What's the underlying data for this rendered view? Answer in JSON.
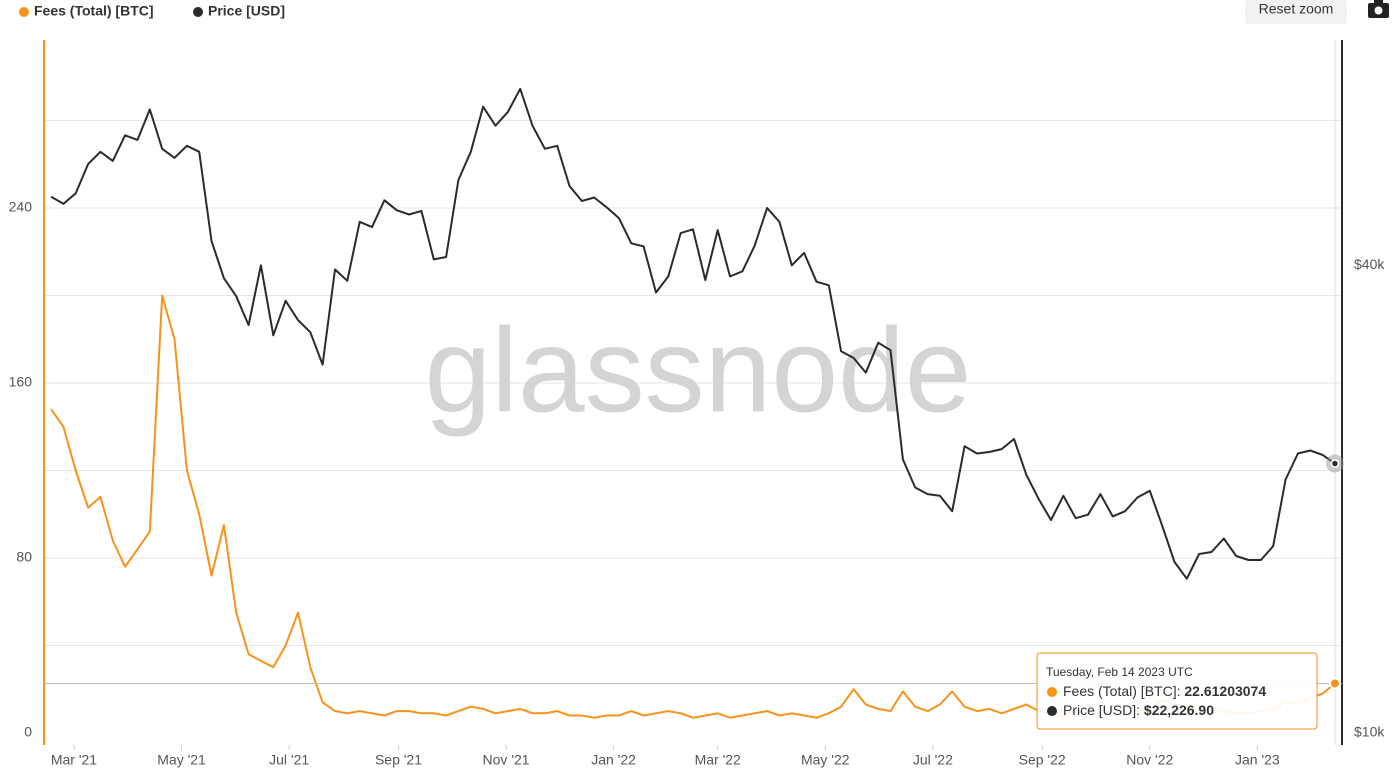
{
  "chart_data": {
    "type": "line",
    "watermark": "glassnode",
    "reset_button": "Reset zoom",
    "legend_position": "top-left",
    "x": [
      "2021-02-16",
      "2021-02-23",
      "2021-03-02",
      "2021-03-09",
      "2021-03-16",
      "2021-03-23",
      "2021-03-30",
      "2021-04-06",
      "2021-04-13",
      "2021-04-20",
      "2021-04-27",
      "2021-05-04",
      "2021-05-11",
      "2021-05-18",
      "2021-05-25",
      "2021-06-01",
      "2021-06-08",
      "2021-06-15",
      "2021-06-22",
      "2021-06-29",
      "2021-07-06",
      "2021-07-13",
      "2021-07-20",
      "2021-07-27",
      "2021-08-03",
      "2021-08-10",
      "2021-08-17",
      "2021-08-24",
      "2021-08-31",
      "2021-09-07",
      "2021-09-14",
      "2021-09-21",
      "2021-09-28",
      "2021-10-05",
      "2021-10-12",
      "2021-10-19",
      "2021-10-26",
      "2021-11-02",
      "2021-11-09",
      "2021-11-16",
      "2021-11-23",
      "2021-11-30",
      "2021-12-07",
      "2021-12-14",
      "2021-12-21",
      "2021-12-28",
      "2022-01-04",
      "2022-01-11",
      "2022-01-18",
      "2022-01-25",
      "2022-02-01",
      "2022-02-08",
      "2022-02-15",
      "2022-02-22",
      "2022-03-01",
      "2022-03-08",
      "2022-03-15",
      "2022-03-22",
      "2022-03-29",
      "2022-04-05",
      "2022-04-12",
      "2022-04-19",
      "2022-04-26",
      "2022-05-03",
      "2022-05-10",
      "2022-05-17",
      "2022-05-24",
      "2022-05-31",
      "2022-06-07",
      "2022-06-14",
      "2022-06-21",
      "2022-06-28",
      "2022-07-05",
      "2022-07-12",
      "2022-07-19",
      "2022-07-26",
      "2022-08-02",
      "2022-08-09",
      "2022-08-16",
      "2022-08-23",
      "2022-08-30",
      "2022-09-06",
      "2022-09-13",
      "2022-09-20",
      "2022-09-27",
      "2022-10-04",
      "2022-10-11",
      "2022-10-18",
      "2022-10-25",
      "2022-11-01",
      "2022-11-08",
      "2022-11-15",
      "2022-11-22",
      "2022-11-29",
      "2022-12-06",
      "2022-12-13",
      "2022-12-20",
      "2022-12-27",
      "2023-01-03",
      "2023-01-10",
      "2023-01-17",
      "2023-01-24",
      "2023-01-31",
      "2023-02-07",
      "2023-02-14"
    ],
    "xlim": [
      "2021-02-12",
      "2023-02-18"
    ],
    "xticks": [
      {
        "value": "2021-03-01",
        "label": "Mar '21"
      },
      {
        "value": "2021-05-01",
        "label": "May '21"
      },
      {
        "value": "2021-07-01",
        "label": "Jul '21"
      },
      {
        "value": "2021-09-01",
        "label": "Sep '21"
      },
      {
        "value": "2021-11-01",
        "label": "Nov '21"
      },
      {
        "value": "2022-01-01",
        "label": "Jan '22"
      },
      {
        "value": "2022-03-01",
        "label": "Mar '22"
      },
      {
        "value": "2022-05-01",
        "label": "May '22"
      },
      {
        "value": "2022-07-01",
        "label": "Jul '22"
      },
      {
        "value": "2022-09-01",
        "label": "Sep '22"
      },
      {
        "value": "2022-11-01",
        "label": "Nov '22"
      },
      {
        "value": "2023-01-01",
        "label": "Jan '23"
      }
    ],
    "ylim": [
      -5.5,
      316.8
    ],
    "yticks": [
      0,
      80,
      160,
      240
    ],
    "grid": [
      40,
      80,
      120,
      160,
      200,
      240,
      280
    ],
    "y2lim": [
      9650,
      78000
    ],
    "y2scale": "log",
    "y2ticks": [
      {
        "value": 10000,
        "label": "$10k"
      },
      {
        "value": 40000,
        "label": "$40k"
      }
    ],
    "series": [
      {
        "name": "Fees (Total) [BTC]",
        "color": "#f7931a",
        "values": [
          148,
          140,
          120,
          103,
          108,
          88,
          76,
          84,
          92,
          200,
          180,
          120,
          100,
          72,
          95,
          55,
          36,
          33,
          30,
          40,
          55,
          30,
          14,
          10,
          9,
          10,
          9,
          8,
          10,
          10,
          9,
          9,
          8,
          10,
          12,
          11,
          9,
          10,
          11,
          9,
          9,
          10,
          8,
          8,
          7,
          8,
          8,
          10,
          8,
          9,
          10,
          9,
          7,
          8,
          9,
          7,
          8,
          9,
          10,
          8,
          9,
          8,
          7,
          9,
          12,
          20,
          13,
          11,
          10,
          19,
          12,
          10,
          13,
          19,
          12,
          10,
          11,
          9,
          11,
          13,
          10,
          9,
          8,
          10,
          9,
          8,
          11,
          9,
          10,
          11,
          15,
          13,
          12,
          10,
          11,
          10,
          9,
          9,
          10,
          11,
          14,
          13,
          16,
          18,
          22.61203074
        ]
      },
      {
        "name": "Price [USD]",
        "color": "#2b2b2b",
        "axis": "y2",
        "values": [
          49000,
          48000,
          49500,
          54000,
          56000,
          54500,
          58800,
          58000,
          63500,
          56500,
          55000,
          57000,
          56000,
          43000,
          38500,
          36500,
          33500,
          40000,
          32500,
          36000,
          34000,
          32800,
          29800,
          39500,
          38200,
          45500,
          44800,
          48500,
          47100,
          46500,
          47000,
          40700,
          41000,
          51500,
          56000,
          64000,
          60500,
          63000,
          67500,
          60500,
          56500,
          57000,
          50600,
          48400,
          48900,
          47500,
          46000,
          42700,
          42300,
          36900,
          38700,
          44000,
          44500,
          38300,
          44400,
          38700,
          39300,
          42400,
          47400,
          45500,
          40000,
          41500,
          38100,
          37700,
          31000,
          30400,
          29100,
          31800,
          31100,
          22500,
          20700,
          20300,
          20200,
          19300,
          23400,
          22900,
          23000,
          23200,
          23900,
          21500,
          20000,
          18800,
          20200,
          18900,
          19100,
          20300,
          19000,
          19300,
          20100,
          20500,
          18500,
          16600,
          15800,
          17000,
          17100,
          17800,
          16900,
          16700,
          16700,
          17400,
          21200,
          22900,
          23100,
          22800,
          22226.9
        ]
      }
    ],
    "tooltip": {
      "title": "Tuesday, Feb 14 2023 UTC",
      "price_label": "$22,226.90"
    }
  }
}
